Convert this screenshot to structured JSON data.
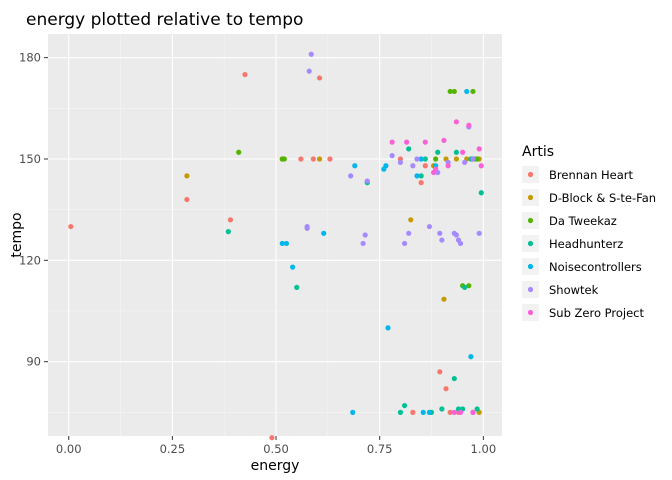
{
  "chart_data": {
    "type": "scatter",
    "title": "energy plotted relative to tempo",
    "xlabel": "energy",
    "ylabel": "tempo",
    "xlim": [
      -0.05,
      1.045
    ],
    "ylim": [
      68,
      187
    ],
    "xticks": [
      0.0,
      0.25,
      0.5,
      0.75,
      1.0
    ],
    "xtick_labels": [
      "0.00",
      "0.25",
      "0.50",
      "0.75",
      "1.00"
    ],
    "yticks": [
      90,
      120,
      150,
      180
    ],
    "ytick_labels": [
      "90",
      "120",
      "150",
      "180"
    ],
    "grid": true,
    "legend_title": "Artis",
    "legend_position": "right",
    "series": [
      {
        "name": "Brennan Heart",
        "color": "#F8766D",
        "points": [
          [
            0.005,
            130
          ],
          [
            0.285,
            138
          ],
          [
            0.39,
            132
          ],
          [
            0.425,
            175
          ],
          [
            0.49,
            67.5
          ],
          [
            0.56,
            150
          ],
          [
            0.59,
            150
          ],
          [
            0.605,
            174
          ],
          [
            0.63,
            150
          ],
          [
            0.8,
            150
          ],
          [
            0.83,
            75
          ],
          [
            0.85,
            143
          ],
          [
            0.86,
            148
          ],
          [
            0.895,
            87
          ],
          [
            0.91,
            82
          ],
          [
            0.92,
            75
          ],
          [
            0.94,
            75
          ],
          [
            0.975,
            75
          ]
        ]
      },
      {
        "name": "D-Block & S-te-Fan",
        "color": "#C49A00",
        "points": [
          [
            0.285,
            145
          ],
          [
            0.515,
            150
          ],
          [
            0.605,
            150
          ],
          [
            0.825,
            132
          ],
          [
            0.87,
            75
          ],
          [
            0.88,
            148
          ],
          [
            0.905,
            108.5
          ],
          [
            0.91,
            150
          ],
          [
            0.935,
            150
          ],
          [
            0.96,
            150
          ],
          [
            0.975,
            150
          ],
          [
            0.99,
            75
          ],
          [
            0.99,
            150
          ]
        ]
      },
      {
        "name": "Da Tweekaz",
        "color": "#53B400",
        "points": [
          [
            0.41,
            152
          ],
          [
            0.515,
            150
          ],
          [
            0.52,
            150
          ],
          [
            0.885,
            150
          ],
          [
            0.92,
            170
          ],
          [
            0.93,
            170
          ],
          [
            0.95,
            112.5
          ],
          [
            0.965,
            112.5
          ],
          [
            0.975,
            170
          ],
          [
            0.98,
            150
          ],
          [
            0.985,
            150
          ]
        ]
      },
      {
        "name": "Headhunterz",
        "color": "#00C094",
        "points": [
          [
            0.385,
            128.5
          ],
          [
            0.55,
            112
          ],
          [
            0.72,
            143
          ],
          [
            0.8,
            75
          ],
          [
            0.81,
            77
          ],
          [
            0.82,
            153
          ],
          [
            0.85,
            145
          ],
          [
            0.86,
            150
          ],
          [
            0.875,
            75
          ],
          [
            0.89,
            152
          ],
          [
            0.9,
            76
          ],
          [
            0.93,
            85
          ],
          [
            0.935,
            152
          ],
          [
            0.94,
            76
          ],
          [
            0.955,
            112
          ],
          [
            0.97,
            150
          ],
          [
            0.985,
            76
          ],
          [
            0.995,
            140
          ],
          [
            0.95,
            76
          ]
        ]
      },
      {
        "name": "Noisecontrollers",
        "color": "#00B6EB",
        "points": [
          [
            0.515,
            125
          ],
          [
            0.525,
            125
          ],
          [
            0.54,
            118
          ],
          [
            0.615,
            128
          ],
          [
            0.685,
            75
          ],
          [
            0.69,
            148
          ],
          [
            0.76,
            147
          ],
          [
            0.765,
            148
          ],
          [
            0.77,
            100
          ],
          [
            0.84,
            145
          ],
          [
            0.85,
            150
          ],
          [
            0.855,
            75
          ],
          [
            0.87,
            75
          ],
          [
            0.885,
            148
          ],
          [
            0.96,
            170
          ],
          [
            0.97,
            91.5
          ],
          [
            0.975,
            150
          ]
        ]
      },
      {
        "name": "Showtek",
        "color": "#A58AFF",
        "points": [
          [
            0.575,
            130
          ],
          [
            0.575,
            129.5
          ],
          [
            0.58,
            176
          ],
          [
            0.585,
            181
          ],
          [
            0.68,
            145
          ],
          [
            0.71,
            125
          ],
          [
            0.715,
            127.5
          ],
          [
            0.72,
            143.5
          ],
          [
            0.78,
            151
          ],
          [
            0.8,
            149
          ],
          [
            0.81,
            125
          ],
          [
            0.82,
            128
          ],
          [
            0.83,
            148
          ],
          [
            0.84,
            150
          ],
          [
            0.87,
            130
          ],
          [
            0.89,
            146
          ],
          [
            0.895,
            128
          ],
          [
            0.9,
            126
          ],
          [
            0.915,
            149
          ],
          [
            0.93,
            128
          ],
          [
            0.935,
            127.5
          ],
          [
            0.94,
            126
          ],
          [
            0.945,
            125
          ],
          [
            0.955,
            149
          ],
          [
            0.965,
            159.5
          ],
          [
            0.975,
            150
          ],
          [
            0.99,
            128
          ]
        ]
      },
      {
        "name": "Sub Zero Project",
        "color": "#FB61D7",
        "points": [
          [
            0.78,
            155
          ],
          [
            0.815,
            155
          ],
          [
            0.86,
            155
          ],
          [
            0.88,
            146
          ],
          [
            0.885,
            147
          ],
          [
            0.905,
            155.5
          ],
          [
            0.915,
            148
          ],
          [
            0.93,
            75
          ],
          [
            0.935,
            161
          ],
          [
            0.945,
            75
          ],
          [
            0.95,
            152
          ],
          [
            0.965,
            160
          ],
          [
            0.975,
            75
          ],
          [
            0.99,
            153
          ],
          [
            0.995,
            148
          ]
        ]
      }
    ]
  }
}
